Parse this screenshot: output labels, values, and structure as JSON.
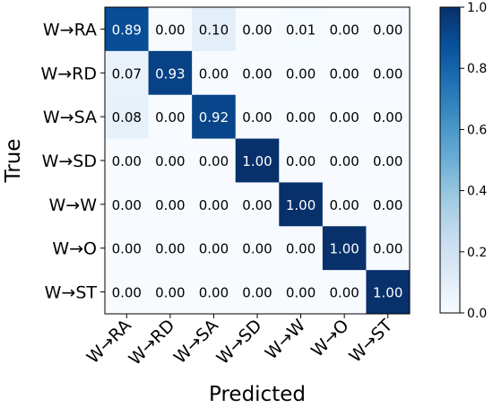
{
  "chart_data": {
    "type": "heatmap",
    "title": "",
    "xlabel": "Predicted",
    "ylabel": "True",
    "x_categories": [
      "W→RA",
      "W→RD",
      "W→SA",
      "W→SD",
      "W→W",
      "W→O",
      "W→ST"
    ],
    "y_categories": [
      "W→RA",
      "W→RD",
      "W→SA",
      "W→SD",
      "W→W",
      "W→O",
      "W→ST"
    ],
    "values": [
      [
        0.89,
        0.0,
        0.1,
        0.0,
        0.01,
        0.0,
        0.0
      ],
      [
        0.07,
        0.93,
        0.0,
        0.0,
        0.0,
        0.0,
        0.0
      ],
      [
        0.08,
        0.0,
        0.92,
        0.0,
        0.0,
        0.0,
        0.0
      ],
      [
        0.0,
        0.0,
        0.0,
        1.0,
        0.0,
        0.0,
        0.0
      ],
      [
        0.0,
        0.0,
        0.0,
        0.0,
        1.0,
        0.0,
        0.0
      ],
      [
        0.0,
        0.0,
        0.0,
        0.0,
        0.0,
        1.0,
        0.0
      ],
      [
        0.0,
        0.0,
        0.0,
        0.0,
        0.0,
        0.0,
        1.0
      ]
    ],
    "value_format": "0.00",
    "colorbar": {
      "range": [
        0.0,
        1.0
      ],
      "ticks": [
        "0.0",
        "0.2",
        "0.4",
        "0.6",
        "0.8",
        "1.0"
      ],
      "colormap": "Blues",
      "colors": [
        "#f7fbff",
        "#deebf7",
        "#c6dbef",
        "#9ecae1",
        "#6baed6",
        "#4292c6",
        "#2171b5",
        "#08519c",
        "#08306b"
      ]
    }
  }
}
